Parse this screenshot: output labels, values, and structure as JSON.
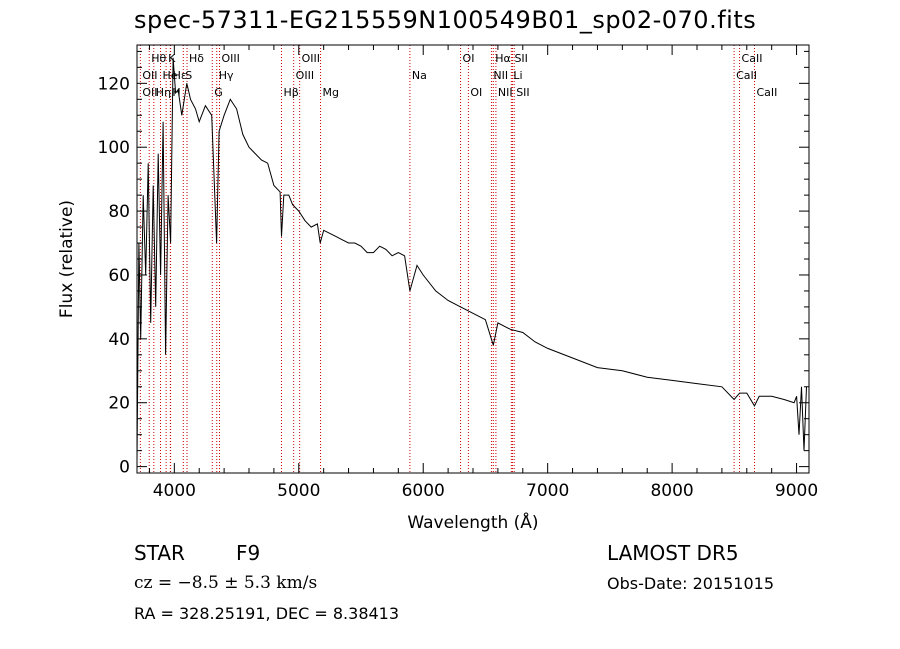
{
  "header": {
    "title": "spec-57311-EG215559N100549B01_sp02-070.fits"
  },
  "footer": {
    "class_label": "STAR",
    "subclass": "F9",
    "survey": "LAMOST DR5",
    "cz": "cz = −8.5 ± 5.3 km/s",
    "obs_date": "Obs-Date: 20151015",
    "coords": "RA = 328.25191, DEC =   8.38413"
  },
  "chart_data": {
    "type": "line",
    "title": "spec-57311-EG215559N100549B01_sp02-070.fits",
    "xlabel": "Wavelength (Å)",
    "ylabel": "Flux (relative)",
    "xlim": [
      3700,
      9100
    ],
    "ylim": [
      -2,
      132
    ],
    "xticks": [
      4000,
      5000,
      6000,
      7000,
      8000,
      9000
    ],
    "yticks": [
      0,
      20,
      40,
      60,
      80,
      100,
      120
    ],
    "grid": false,
    "line_color": "#000000",
    "marker_color": "#cc0000",
    "series": [
      {
        "x": [
          3700,
          3715,
          3730,
          3750,
          3770,
          3790,
          3810,
          3830,
          3850,
          3870,
          3890,
          3910,
          3930,
          3950,
          3970,
          3990,
          4010,
          4030,
          4060,
          4100,
          4130,
          4170,
          4200,
          4250,
          4300,
          4340,
          4360,
          4400,
          4450,
          4500,
          4550,
          4600,
          4650,
          4700,
          4750,
          4800,
          4850,
          4861,
          4880,
          4920,
          4950,
          5000,
          5050,
          5100,
          5150,
          5172,
          5200,
          5250,
          5300,
          5350,
          5400,
          5450,
          5500,
          5550,
          5600,
          5650,
          5700,
          5750,
          5800,
          5850,
          5893,
          5950,
          6000,
          6100,
          6200,
          6300,
          6400,
          6500,
          6563,
          6600,
          6700,
          6800,
          6900,
          7000,
          7200,
          7400,
          7600,
          7800,
          8000,
          8200,
          8400,
          8498,
          8542,
          8600,
          8662,
          8700,
          8800,
          8900,
          8980,
          9000,
          9020,
          9040,
          9060,
          9080
        ],
        "y": [
          2,
          70,
          40,
          85,
          60,
          95,
          45,
          88,
          50,
          98,
          60,
          108,
          35,
          85,
          70,
          128,
          117,
          118,
          110,
          120,
          115,
          112,
          108,
          113,
          110,
          70,
          105,
          110,
          115,
          112,
          104,
          100,
          98,
          96,
          95,
          88,
          86,
          72,
          85,
          85,
          82,
          80,
          77,
          75,
          76,
          70,
          74,
          73,
          72,
          71,
          70,
          70,
          69,
          67,
          67,
          69,
          68,
          66,
          67,
          66,
          55,
          63,
          60,
          55,
          52,
          50,
          48,
          46,
          38,
          45,
          43,
          42,
          39,
          37,
          34,
          31,
          30,
          28,
          27,
          26,
          25,
          21,
          23,
          23,
          19,
          22,
          22,
          21,
          20,
          22,
          10,
          25,
          5,
          25
        ]
      }
    ],
    "lines": [
      {
        "label": "Hθ",
        "x": 3798,
        "row": 0
      },
      {
        "label": "OII",
        "x": 3727,
        "row": 1
      },
      {
        "label": "OII",
        "x": 3727,
        "row": 2
      },
      {
        "label": "He",
        "x": 3889,
        "row": 1
      },
      {
        "label": "Hη",
        "x": 3835,
        "row": 2
      },
      {
        "label": "K",
        "x": 3934,
        "row": 0
      },
      {
        "label": "Hε",
        "x": 3970,
        "row": 1
      },
      {
        "label": "H",
        "x": 3968,
        "row": 2
      },
      {
        "label": "Hδ",
        "x": 4102,
        "row": 0
      },
      {
        "label": "S",
        "x": 4072,
        "row": 1
      },
      {
        "label": "OIII",
        "x": 4363,
        "row": 0
      },
      {
        "label": "Hγ",
        "x": 4341,
        "row": 1
      },
      {
        "label": "G",
        "x": 4305,
        "row": 2
      },
      {
        "label": "OIII",
        "x": 5007,
        "row": 0
      },
      {
        "label": "OIII",
        "x": 4959,
        "row": 1
      },
      {
        "label": "Hβ",
        "x": 4861,
        "row": 2
      },
      {
        "label": "Mg",
        "x": 5175,
        "row": 2
      },
      {
        "label": "Na",
        "x": 5893,
        "row": 1
      },
      {
        "label": "OI",
        "x": 6300,
        "row": 0
      },
      {
        "label": "OI",
        "x": 6363,
        "row": 2
      },
      {
        "label": "Hα",
        "x": 6563,
        "row": 0
      },
      {
        "label": "NII",
        "x": 6548,
        "row": 1
      },
      {
        "label": "NII",
        "x": 6584,
        "row": 2
      },
      {
        "label": "SII",
        "x": 6717,
        "row": 0
      },
      {
        "label": "Li",
        "x": 6708,
        "row": 1
      },
      {
        "label": "SII",
        "x": 6731,
        "row": 2
      },
      {
        "label": "CaII",
        "x": 8542,
        "row": 0
      },
      {
        "label": "CaII",
        "x": 8498,
        "row": 1
      },
      {
        "label": "CaII",
        "x": 8662,
        "row": 2
      }
    ]
  }
}
